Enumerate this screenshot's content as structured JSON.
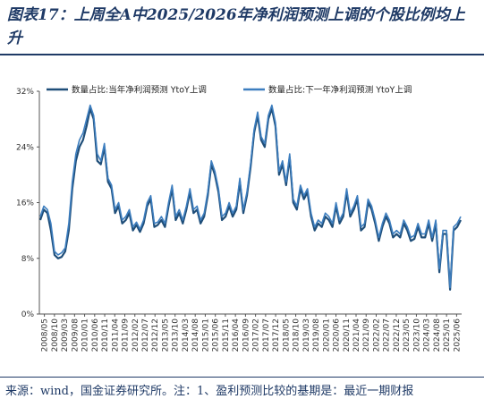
{
  "title": "图表17：上周全A中2025/2026年净利润预测上调的个股比例均上升",
  "source": "来源：wind，国金证券研究所。注：1、盈利预测比较的基期是：最近一期财报",
  "colors": {
    "series1": "#1f4e79",
    "series2": "#3d7ebf",
    "axis": "#555555"
  },
  "chart_data": {
    "type": "line",
    "ylim": [
      0,
      32
    ],
    "yticks": [
      "0%",
      "8%",
      "16%",
      "24%",
      "32%"
    ],
    "ytick_values": [
      0,
      8,
      16,
      24,
      32
    ],
    "legend_position": "top",
    "grid": false,
    "xticks": [
      "2008/05",
      "2008/10",
      "2009/03",
      "2009/08",
      "2010/01",
      "2010/06",
      "2010/11",
      "2011/04",
      "2011/09",
      "2012/02",
      "2012/07",
      "2012/12",
      "2013/05",
      "2013/10",
      "2014/03",
      "2014/08",
      "2015/01",
      "2015/06",
      "2015/11",
      "2016/04",
      "2016/09",
      "2017/02",
      "2017/07",
      "2017/12",
      "2018/05",
      "2018/10",
      "2019/03",
      "2019/08",
      "2020/01",
      "2020/06",
      "2020/11",
      "2021/04",
      "2021/09",
      "2022/02",
      "2022/07",
      "2022/12",
      "2023/05",
      "2023/10",
      "2024/03",
      "2024/08",
      "2025/01",
      "2025/06"
    ],
    "series": [
      {
        "name": "数量占比:当年净利润预测 YtoY上调",
        "values": [
          13.5,
          15,
          14.5,
          12,
          8.5,
          8,
          8.2,
          9,
          12,
          18,
          22,
          24,
          25,
          27,
          29.5,
          28,
          22,
          21.5,
          24,
          19,
          18,
          14.5,
          15.5,
          13,
          13.5,
          14.5,
          12,
          12.8,
          11.8,
          13,
          15.5,
          16.5,
          12.5,
          12.8,
          13.5,
          12.5,
          15.5,
          18,
          13.5,
          14.5,
          13,
          15,
          17.5,
          14.5,
          15,
          13,
          14,
          17,
          21.5,
          20,
          17.5,
          13.5,
          14,
          15.5,
          14,
          15,
          19,
          14.5,
          17,
          21,
          26,
          28.5,
          25,
          24,
          28,
          29.5,
          27,
          20,
          21.5,
          18.5,
          22.5,
          16,
          15,
          18,
          16.5,
          17.5,
          14,
          12,
          13,
          12.5,
          14,
          13.5,
          12.5,
          15.5,
          13,
          14,
          17.5,
          14,
          15,
          16.5,
          12,
          12.5,
          16,
          15,
          13,
          10.5,
          12.5,
          14,
          13,
          11,
          11.5,
          11,
          13,
          12,
          10.5,
          10.8,
          12.5,
          11,
          11,
          13,
          10.5,
          13,
          6,
          11.5,
          11.5,
          3.5,
          12,
          12.5,
          13.5
        ]
      },
      {
        "name": "数量占比:下一年净利润预测 YtoY上调",
        "values": [
          14,
          15.5,
          15,
          13,
          9,
          8.5,
          8.8,
          9.5,
          13,
          19,
          23,
          25,
          26,
          28,
          30,
          28.5,
          23,
          22,
          24.5,
          19.5,
          18.5,
          15,
          16,
          13.5,
          14,
          15,
          12.5,
          13.2,
          12.2,
          13.5,
          16,
          17,
          13,
          13.2,
          14,
          13,
          16,
          18.5,
          14,
          15,
          13.5,
          15.5,
          18,
          15,
          15.5,
          13.5,
          14.5,
          17.5,
          22,
          20.5,
          18,
          14,
          14.5,
          16,
          14.5,
          15.5,
          19.5,
          15,
          17.5,
          21.5,
          26.5,
          29,
          25.5,
          24.5,
          28.5,
          30,
          27.5,
          20.5,
          22,
          19,
          23,
          16.5,
          15.5,
          18.5,
          17,
          18,
          14.5,
          12.5,
          13.5,
          13,
          14.5,
          14,
          13,
          16,
          13.5,
          14.5,
          18,
          14.5,
          15.5,
          17,
          12.5,
          13,
          16.5,
          15.5,
          13.5,
          11,
          13,
          14.5,
          13.5,
          11.5,
          12,
          11.5,
          13.5,
          12.5,
          11,
          11.3,
          13,
          11.5,
          11.5,
          13.5,
          11,
          13.5,
          6.5,
          12,
          12,
          3.8,
          12.5,
          13,
          14
        ]
      }
    ]
  }
}
